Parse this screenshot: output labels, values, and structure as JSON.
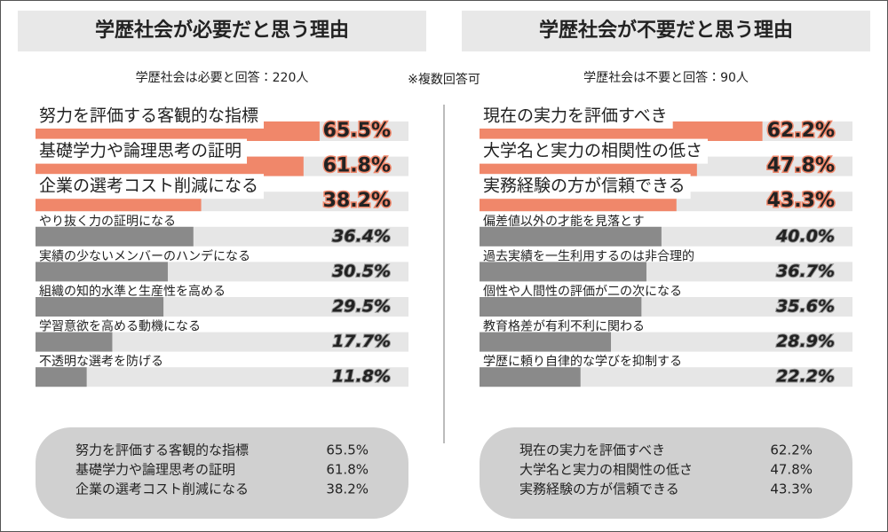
{
  "note": "※複数回答可",
  "chart_data": [
    {
      "type": "bar",
      "orientation": "horizontal",
      "title": "学歴社会が必要だと思う理由",
      "subtitle": "学歴社会は必要と回答：220人",
      "categories": [
        "努力を評価する客観的な指標",
        "基礎学力や論理思考の証明",
        "企業の選考コスト削減になる",
        "やり抜く力の証明になる",
        "実績の少ないメンバーのハンデになる",
        "組織の知的水準と生産性を高める",
        "学習意欲を高める動機になる",
        "不透明な選考を防げる"
      ],
      "values": [
        65.5,
        61.8,
        38.2,
        36.4,
        30.5,
        29.5,
        17.7,
        11.8
      ],
      "value_labels": [
        "65.5%",
        "61.8%",
        "38.2%",
        "36.4%",
        "30.5%",
        "29.5%",
        "17.7%",
        "11.8%"
      ],
      "colors": [
        "#f0876a",
        "#f0876a",
        "#f0876a",
        "#8a8a8a",
        "#8a8a8a",
        "#8a8a8a",
        "#8a8a8a",
        "#8a8a8a"
      ],
      "track_color": "#e6e6e6",
      "xlim": [
        0,
        86
      ],
      "summary": {
        "labels": [
          "努力を評価する客観的な指標",
          "基礎学力や論理思考の証明",
          "企業の選考コスト削減になる"
        ],
        "values": [
          "65.5%",
          "61.8%",
          "38.2%"
        ]
      }
    },
    {
      "type": "bar",
      "orientation": "horizontal",
      "title": "学歴社会が不要だと思う理由",
      "subtitle": "学歴社会は不要と回答：90人",
      "categories": [
        "現在の実力を評価すべき",
        "大学名と実力の相関性の低さ",
        "実務経験の方が信頼できる",
        "偏差値以外の才能を見落とす",
        "過去実績を一生利用するのは非合理的",
        "個性や人間性の評価が二の次になる",
        "教育格差が有利不利に関わる",
        "学歴に頼り自律的な学びを抑制する"
      ],
      "values": [
        62.2,
        47.8,
        43.3,
        40.0,
        36.7,
        35.6,
        28.9,
        22.2
      ],
      "value_labels": [
        "62.2%",
        "47.8%",
        "43.3%",
        "40.0%",
        "36.7%",
        "35.6%",
        "28.9%",
        "22.2%"
      ],
      "colors": [
        "#f0876a",
        "#f0876a",
        "#f0876a",
        "#8a8a8a",
        "#8a8a8a",
        "#8a8a8a",
        "#8a8a8a",
        "#8a8a8a"
      ],
      "track_color": "#e6e6e6",
      "xlim": [
        0,
        82
      ],
      "summary": {
        "labels": [
          "現在の実力を評価すべき",
          "大学名と実力の相関性の低さ",
          "実務経験の方が信頼できる"
        ],
        "values": [
          "62.2%",
          "47.8%",
          "43.3%"
        ]
      }
    }
  ]
}
